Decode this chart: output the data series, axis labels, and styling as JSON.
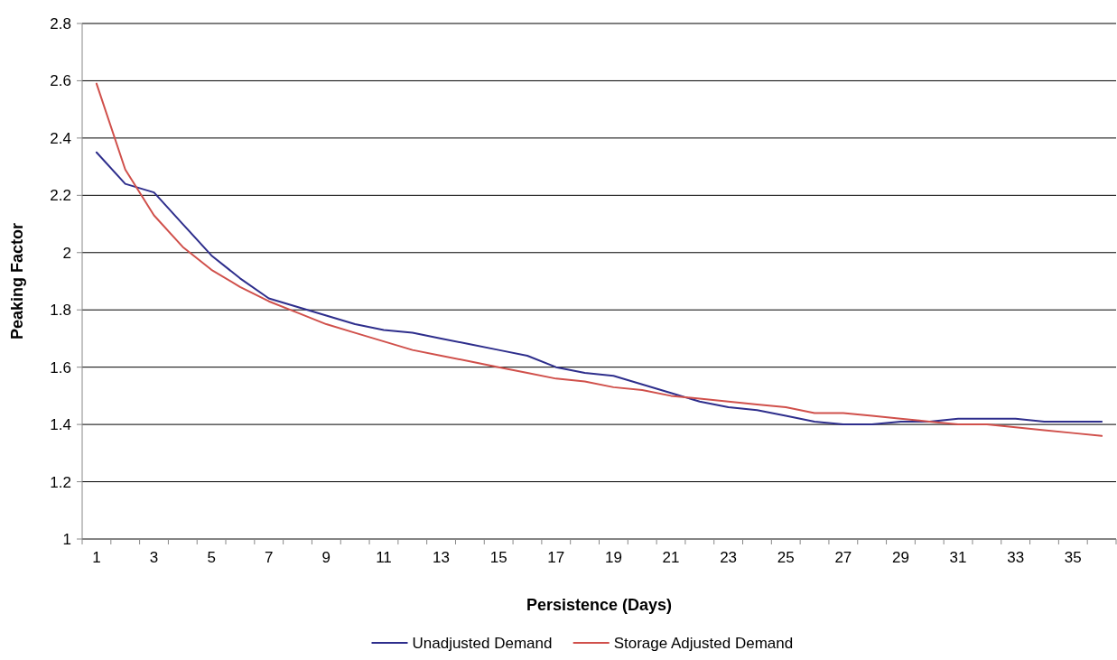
{
  "chart_data": {
    "type": "line",
    "xlabel": "Persistence (Days)",
    "ylabel": "Peaking Factor",
    "x": [
      1,
      2,
      3,
      4,
      5,
      6,
      7,
      8,
      9,
      10,
      11,
      12,
      13,
      14,
      15,
      16,
      17,
      18,
      19,
      20,
      21,
      22,
      23,
      24,
      25,
      26,
      27,
      28,
      29,
      30,
      31,
      32,
      33,
      34,
      35,
      36
    ],
    "xlim": [
      0.5,
      36.5
    ],
    "xticks": [
      1,
      3,
      5,
      7,
      9,
      11,
      13,
      15,
      17,
      19,
      21,
      23,
      25,
      27,
      29,
      31,
      33,
      35,
      {
        "value": 0.5,
        "label": null
      },
      {
        "value": 1.5,
        "label": null
      },
      {
        "value": 2.5,
        "label": null
      },
      {
        "value": 3.5,
        "label": null
      },
      {
        "value": 4.5,
        "label": null
      },
      {
        "value": 5.5,
        "label": null
      },
      {
        "value": 6.5,
        "label": null
      },
      {
        "value": 7.5,
        "label": null
      },
      {
        "value": 8.5,
        "label": null
      },
      {
        "value": 9.5,
        "label": null
      },
      {
        "value": 10.5,
        "label": null
      },
      {
        "value": 11.5,
        "label": null
      },
      {
        "value": 12.5,
        "label": null
      },
      {
        "value": 13.5,
        "label": null
      },
      {
        "value": 14.5,
        "label": null
      },
      {
        "value": 15.5,
        "label": null
      },
      {
        "value": 16.5,
        "label": null
      },
      {
        "value": 17.5,
        "label": null
      },
      {
        "value": 18.5,
        "label": null
      },
      {
        "value": 19.5,
        "label": null
      },
      {
        "value": 20.5,
        "label": null
      },
      {
        "value": 21.5,
        "label": null
      },
      {
        "value": 22.5,
        "label": null
      },
      {
        "value": 23.5,
        "label": null
      },
      {
        "value": 24.5,
        "label": null
      },
      {
        "value": 25.5,
        "label": null
      },
      {
        "value": 26.5,
        "label": null
      },
      {
        "value": 27.5,
        "label": null
      },
      {
        "value": 28.5,
        "label": null
      },
      {
        "value": 29.5,
        "label": null
      },
      {
        "value": 30.5,
        "label": null
      },
      {
        "value": 31.5,
        "label": null
      },
      {
        "value": 32.5,
        "label": null
      },
      {
        "value": 33.5,
        "label": null
      },
      {
        "value": 34.5,
        "label": null
      },
      {
        "value": 35.5,
        "label": null
      },
      {
        "value": 36.5,
        "label": null
      }
    ],
    "series": [
      {
        "name": "Unadjusted Demand",
        "color": "#2e2e8c",
        "values": [
          2.35,
          2.24,
          2.21,
          2.1,
          1.99,
          1.91,
          1.84,
          1.81,
          1.78,
          1.75,
          1.73,
          1.72,
          1.7,
          1.68,
          1.66,
          1.64,
          1.6,
          1.58,
          1.57,
          1.54,
          1.51,
          1.48,
          1.46,
          1.45,
          1.43,
          1.41,
          1.4,
          1.4,
          1.41,
          1.41,
          1.42,
          1.42,
          1.42,
          1.41,
          1.41,
          1.41
        ]
      },
      {
        "name": "Storage Adjusted Demand",
        "color": "#d0504b",
        "values": [
          2.59,
          2.29,
          2.13,
          2.02,
          1.94,
          1.88,
          1.83,
          1.79,
          1.75,
          1.72,
          1.69,
          1.66,
          1.64,
          1.62,
          1.6,
          1.58,
          1.56,
          1.55,
          1.53,
          1.52,
          1.5,
          1.49,
          1.48,
          1.47,
          1.46,
          1.44,
          1.44,
          1.43,
          1.42,
          1.41,
          1.4,
          1.4,
          1.39,
          1.38,
          1.37,
          1.36
        ]
      }
    ],
    "ylim": [
      1,
      2.8
    ],
    "yticks": [
      1,
      1.2,
      1.4,
      1.6,
      1.8,
      2,
      2.2,
      2.4,
      2.6,
      2.8
    ],
    "grid": "y",
    "legend": "bottom",
    "marker": "none",
    "line_style": "solid"
  }
}
